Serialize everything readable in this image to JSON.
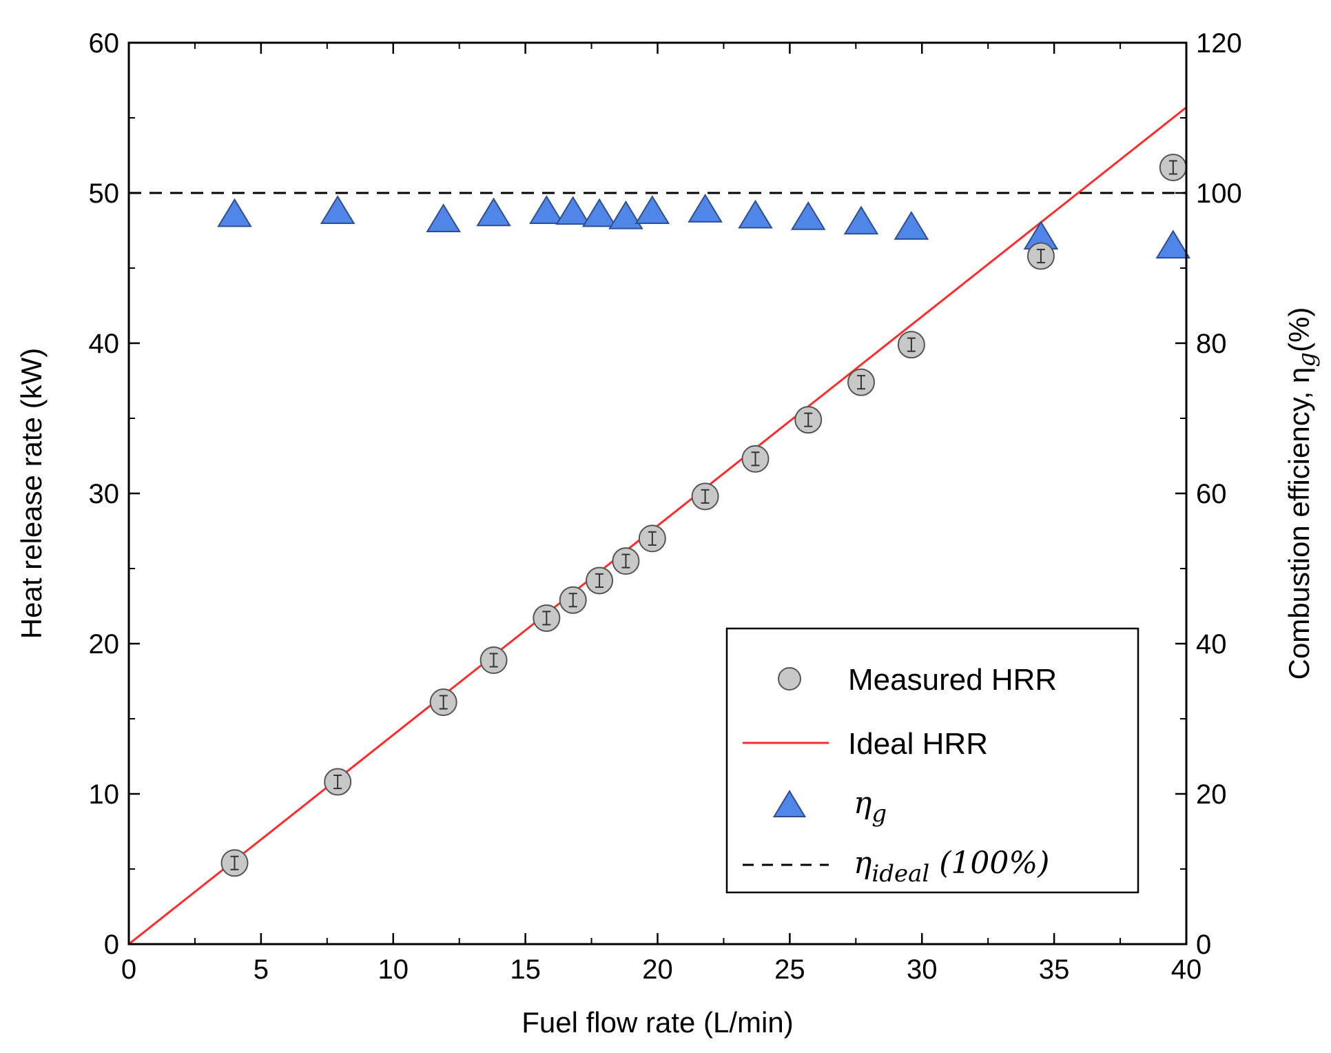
{
  "chart_data": {
    "type": "scatter",
    "xlabel": "Fuel flow rate (L/min)",
    "ylabel": "Heat release rate (kW)",
    "y2label_prefix": "Combustion efficiency, η",
    "y2label_sub": "g",
    "y2label_suffix": "(%)",
    "xlim": [
      0,
      40
    ],
    "ylim": [
      0,
      60
    ],
    "y2lim": [
      0,
      120
    ],
    "xticks": [
      "0",
      "5",
      "10",
      "15",
      "20",
      "25",
      "30",
      "35",
      "40"
    ],
    "yticks": [
      "0",
      "10",
      "20",
      "30",
      "40",
      "50",
      "60"
    ],
    "y2ticks": [
      "0",
      "20",
      "40",
      "60",
      "80",
      "100",
      "120"
    ],
    "grid": false,
    "legend_position": "bottom-right",
    "series": [
      {
        "name": "Measured HRR",
        "kind": "scatter",
        "marker": "circle",
        "axis": "left",
        "color": "#c8c8c8",
        "x": [
          4.0,
          7.9,
          11.9,
          13.8,
          15.8,
          16.8,
          17.8,
          18.8,
          19.8,
          21.8,
          23.7,
          25.7,
          27.7,
          29.6,
          34.5,
          39.5
        ],
        "y": [
          5.4,
          10.8,
          16.1,
          18.9,
          21.7,
          22.9,
          24.2,
          25.5,
          27.0,
          29.8,
          32.3,
          34.9,
          37.4,
          39.9,
          45.8,
          51.7
        ],
        "error": [
          0.3,
          0.3,
          0.3,
          0.3,
          0.3,
          0.3,
          0.3,
          0.3,
          0.3,
          0.3,
          0.3,
          0.3,
          0.3,
          0.3,
          0.3,
          0.3
        ]
      },
      {
        "name": "Ideal HRR",
        "kind": "line",
        "axis": "left",
        "color": "#ff2a2a",
        "x": [
          0,
          40
        ],
        "y": [
          0,
          55.7
        ]
      },
      {
        "name": "η",
        "name_sub": "g",
        "kind": "scatter",
        "marker": "triangle",
        "axis": "right",
        "color": "#4f86e8",
        "x": [
          4.0,
          7.9,
          11.9,
          13.8,
          15.8,
          16.8,
          17.8,
          18.8,
          19.8,
          21.8,
          23.7,
          25.7,
          27.7,
          29.6,
          34.5,
          39.5
        ],
        "y": [
          97.2,
          97.6,
          96.5,
          97.3,
          97.6,
          97.5,
          97.2,
          96.9,
          97.6,
          97.8,
          97.0,
          96.8,
          96.2,
          95.5,
          94.2,
          93.0
        ]
      },
      {
        "name": "η",
        "name_sub": "ideal",
        "name_suffix": " (100%)",
        "kind": "line",
        "style": "dashed",
        "axis": "right",
        "color": "#000000",
        "x": [
          0,
          40
        ],
        "y": [
          100,
          100
        ]
      }
    ]
  }
}
